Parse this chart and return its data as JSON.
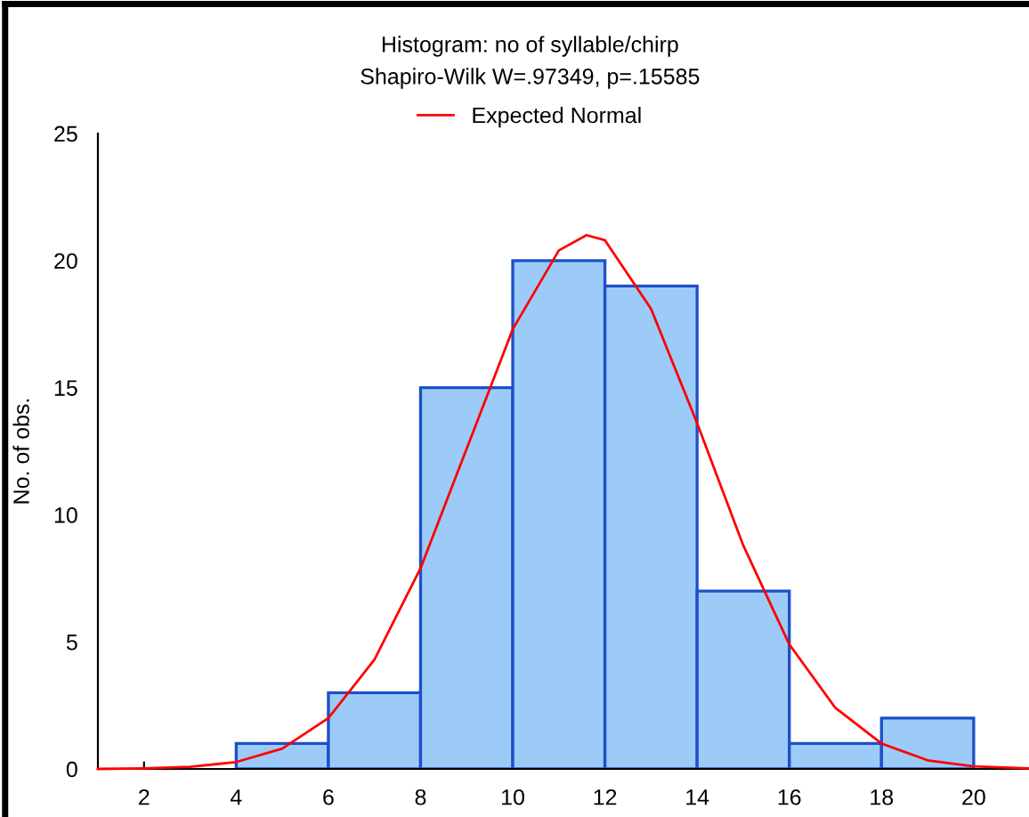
{
  "chart_data": {
    "type": "histogram",
    "title": "Histogram: no of syllable/chirp",
    "subtitle": "Shapiro-Wilk W=.97349, p=.15585",
    "ylabel": "No. of obs.",
    "bins": [
      4,
      6,
      8,
      10,
      12,
      14,
      16,
      18,
      20
    ],
    "values": [
      1,
      3,
      15,
      20,
      19,
      7,
      1,
      2
    ],
    "color": "#9ccbf8",
    "series": [
      {
        "type": "line",
        "name": "Expected Normal",
        "color": "#ff0000",
        "x": [
          1,
          2,
          3,
          4,
          5,
          6,
          7,
          8,
          9,
          10,
          11,
          11.6,
          12,
          13,
          14,
          15,
          16,
          17,
          18,
          19,
          20,
          21.2
        ],
        "values": [
          0,
          0.02,
          0.08,
          0.27,
          0.8,
          2.0,
          4.3,
          7.9,
          12.6,
          17.3,
          20.4,
          21,
          20.8,
          18.1,
          13.6,
          8.8,
          4.9,
          2.4,
          1.0,
          0.34,
          0.1,
          0.02
        ]
      }
    ],
    "xlim": [
      1,
      21.2
    ],
    "xticks": [
      2,
      4,
      6,
      8,
      10,
      12,
      14,
      16,
      18,
      20
    ],
    "ylim": [
      0,
      25
    ],
    "yticks": [
      0,
      5,
      10,
      15,
      20,
      25
    ],
    "legend": "top",
    "grid": false
  }
}
